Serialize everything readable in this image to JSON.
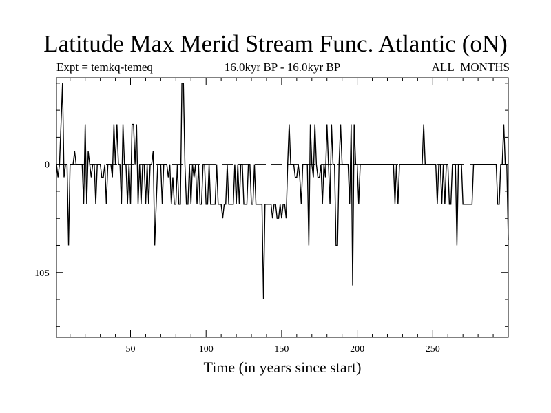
{
  "chart_data": {
    "type": "line",
    "title": "Latitude Max Merid Stream Func. Atlantic (oN)",
    "subtitle_left": "Expt = temkq-temeq",
    "subtitle_center": "16.0kyr BP - 16.0kyr BP",
    "subtitle_right": "ALL_MONTHS",
    "xlabel": "Time (in years since start)",
    "ylabel": "",
    "xlim": [
      1,
      300
    ],
    "ylim": [
      -16,
      8
    ],
    "x_ticks": [
      50,
      100,
      150,
      200,
      250
    ],
    "x_tick_labels": [
      "50",
      "100",
      "150",
      "200",
      "250"
    ],
    "y_ticks": [
      0,
      -10
    ],
    "y_tick_labels": [
      "0",
      "10S"
    ],
    "series": [
      {
        "name": "temkq-temeq",
        "x": [
          1,
          2,
          3,
          4,
          5,
          6,
          7,
          8,
          9,
          10,
          11,
          12,
          13,
          14,
          15,
          16,
          17,
          18,
          19,
          20,
          21,
          22,
          23,
          24,
          25,
          26,
          27,
          28,
          29,
          30,
          31,
          32,
          33,
          34,
          35,
          36,
          37,
          38,
          39,
          40,
          41,
          42,
          43,
          44,
          45,
          46,
          47,
          48,
          49,
          50,
          51,
          52,
          53,
          54,
          55,
          56,
          57,
          58,
          59,
          60,
          61,
          62,
          63,
          64,
          65,
          66,
          67,
          68,
          69,
          70,
          71,
          72,
          73,
          74,
          75,
          76,
          77,
          78,
          79,
          80,
          81,
          82,
          83,
          84,
          85,
          86,
          87,
          88,
          89,
          90,
          91,
          92,
          93,
          94,
          95,
          96,
          97,
          98,
          99,
          100,
          101,
          102,
          103,
          104,
          105,
          106,
          107,
          108,
          109,
          110,
          111,
          112,
          113,
          114,
          115,
          116,
          117,
          118,
          119,
          120,
          121,
          122,
          123,
          124,
          125,
          126,
          127,
          128,
          129,
          130,
          131,
          132,
          133,
          134,
          135,
          136,
          137,
          138,
          139,
          140,
          141,
          142,
          143,
          144,
          145,
          146,
          147,
          148,
          149,
          150,
          151,
          152,
          153,
          154,
          155,
          156,
          157,
          158,
          159,
          160,
          161,
          162,
          163,
          164,
          165,
          166,
          167,
          168,
          169,
          170,
          171,
          172,
          173,
          174,
          175,
          176,
          177,
          178,
          179,
          180,
          181,
          182,
          183,
          184,
          185,
          186,
          187,
          188,
          189,
          190,
          191,
          192,
          193,
          194,
          195,
          196,
          197,
          198,
          199,
          200,
          201,
          202,
          203,
          204,
          205,
          206,
          207,
          208,
          209,
          210,
          211,
          212,
          213,
          214,
          215,
          216,
          217,
          218,
          219,
          220,
          221,
          222,
          223,
          224,
          225,
          226,
          227,
          228,
          229,
          230,
          231,
          232,
          233,
          234,
          235,
          236,
          237,
          238,
          239,
          240,
          241,
          242,
          243,
          244,
          245,
          246,
          247,
          248,
          249,
          250,
          251,
          252,
          253,
          254,
          255,
          256,
          257,
          258,
          259,
          260,
          261,
          262,
          263,
          264,
          265,
          266,
          267,
          268,
          269,
          270,
          271,
          272,
          273,
          274,
          275,
          276,
          277,
          278,
          279,
          280,
          281,
          282,
          283,
          284,
          285,
          286,
          287,
          288,
          289,
          290,
          291,
          292,
          293,
          294,
          295,
          296,
          297,
          298,
          299,
          300
        ],
        "y": [
          0,
          -1.2,
          0,
          3.7,
          7.5,
          -1.2,
          0,
          0,
          -7.5,
          0,
          0,
          0,
          1.2,
          0,
          0,
          0,
          0,
          0,
          -3.7,
          3.7,
          -3.7,
          1.2,
          0,
          -1.2,
          0,
          0,
          -3.7,
          0,
          0,
          0,
          -1.2,
          -1.2,
          0,
          -3.7,
          0,
          0,
          0,
          -1.2,
          3.7,
          0,
          3.7,
          0,
          0,
          -3.7,
          3.7,
          0,
          0,
          -3.7,
          0,
          -3.7,
          3.7,
          3.7,
          0,
          3.7,
          -3.7,
          0,
          -3.7,
          0,
          0,
          -3.7,
          0,
          -3.7,
          0,
          0,
          1.2,
          -7.5,
          -3.7,
          0,
          0,
          0,
          -3.7,
          0,
          0,
          0,
          -1.2,
          0,
          -3.7,
          -1.2,
          -3.7,
          -3.7,
          0,
          -3.7,
          -3.7,
          7.5,
          7.5,
          0,
          -3.7,
          -3.7,
          0,
          -3.7,
          0,
          -1.2,
          0,
          -3.7,
          0,
          -3.7,
          -3.7,
          0,
          0,
          -3.7,
          -3.7,
          0,
          -3.7,
          -3.7,
          -3.7,
          -3.7,
          0,
          -3.7,
          -3.7,
          -3.7,
          -5.0,
          -3.7,
          -3.7,
          0,
          -3.7,
          -3.7,
          -3.7,
          -3.7,
          0,
          -3.7,
          0,
          -3.7,
          0,
          0,
          -3.7,
          -3.7,
          -3.7,
          0,
          0,
          -3.7,
          -3.7,
          0,
          -3.7,
          -3.7,
          -3.7,
          -3.7,
          -3.7,
          -12.5,
          -3.7,
          -3.7,
          -3.7,
          -3.7,
          -3.7,
          -5.0,
          -3.7,
          -3.7,
          -5.0,
          -5.0,
          -3.7,
          -5.0,
          -3.7,
          -3.7,
          -5.0,
          0,
          3.7,
          0,
          0,
          0,
          -1.2,
          -1.2,
          0,
          -1.2,
          -3.7,
          0,
          0,
          0,
          0,
          -7.5,
          3.7,
          0,
          -1.2,
          3.7,
          0,
          -1.2,
          -1.2,
          0,
          -3.7,
          0,
          -1.2,
          3.7,
          0,
          -3.7,
          3.7,
          0,
          0,
          -7.5,
          -7.5,
          0,
          3.7,
          0,
          0,
          0,
          0,
          0,
          -3.7,
          3.7,
          -11.2,
          3.7,
          0,
          0,
          -3.7,
          0,
          0,
          0,
          0,
          0,
          0,
          0,
          0,
          0,
          0,
          0,
          0,
          0,
          0,
          0,
          0,
          0,
          0,
          0,
          0,
          0,
          0,
          0,
          -3.7,
          0,
          -3.7,
          0,
          0,
          0,
          0,
          0,
          0,
          0,
          0,
          0,
          0,
          0,
          0,
          0,
          0,
          0,
          0,
          3.7,
          0,
          0,
          0,
          0,
          0,
          0,
          0,
          0,
          -3.7,
          0,
          0,
          -3.7,
          0,
          -3.7,
          0,
          0,
          -3.7,
          -3.7,
          0,
          0,
          0,
          -7.5,
          0,
          0,
          0,
          -3.7,
          -3.7,
          -3.7,
          -3.7,
          -3.7,
          -3.7,
          -3.7,
          0,
          0,
          0,
          0,
          0,
          0,
          0,
          0,
          0,
          0,
          0,
          0,
          0,
          0,
          0,
          0,
          -3.7,
          -3.7,
          0,
          0,
          3.7,
          0,
          0,
          -7.0
        ]
      }
    ]
  }
}
